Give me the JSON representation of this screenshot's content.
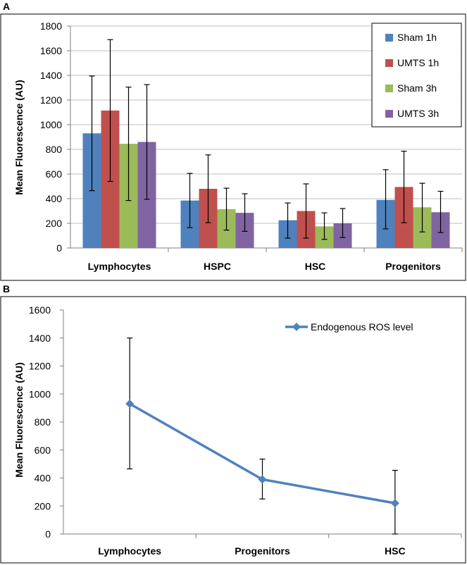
{
  "chart_data": [
    {
      "panel": "A",
      "type": "bar",
      "categories": [
        "Lymphocytes",
        "HSPC",
        "HSC",
        "Progenitors"
      ],
      "ylabel": "Mean Fluorescence (AU)",
      "xlabel": "",
      "ylim": [
        0,
        1800
      ],
      "yticks": [
        0,
        200,
        400,
        600,
        800,
        1000,
        1200,
        1400,
        1600,
        1800
      ],
      "grid": true,
      "legend_position": "top-right",
      "series": [
        {
          "name": "Sham  1h",
          "color": "#4f81bd",
          "values": [
            930,
            385,
            225,
            390
          ],
          "err_low": [
            465,
            165,
            80,
            155
          ],
          "err_high": [
            1395,
            605,
            365,
            635
          ]
        },
        {
          "name": "UMTS  1h",
          "color": "#c0504d",
          "values": [
            1115,
            480,
            300,
            495
          ],
          "err_low": [
            540,
            205,
            80,
            205
          ],
          "err_high": [
            1690,
            755,
            520,
            785
          ]
        },
        {
          "name": "Sham  3h",
          "color": "#9bbb59",
          "values": [
            845,
            315,
            175,
            330
          ],
          "err_low": [
            385,
            145,
            70,
            130
          ],
          "err_high": [
            1305,
            485,
            285,
            525
          ]
        },
        {
          "name": "UMTS  3h",
          "color": "#8064a2",
          "values": [
            860,
            285,
            200,
            290
          ],
          "err_low": [
            395,
            135,
            85,
            125
          ],
          "err_high": [
            1325,
            440,
            320,
            460
          ]
        }
      ]
    },
    {
      "panel": "B",
      "type": "line",
      "categories": [
        "Lymphocytes",
        "Progenitors",
        "HSC"
      ],
      "ylabel": "Mean Fluorescence (AU)",
      "xlabel": "",
      "ylim": [
        0,
        1600
      ],
      "yticks": [
        0,
        200,
        400,
        600,
        800,
        1000,
        1200,
        1400,
        1600
      ],
      "grid": false,
      "legend_position": "top-right",
      "series": [
        {
          "name": "Endogenous ROS level",
          "color": "#4f81bd",
          "values": [
            930,
            390,
            220
          ],
          "err_low": [
            465,
            250,
            0
          ],
          "err_high": [
            1400,
            535,
            455
          ]
        }
      ]
    }
  ]
}
